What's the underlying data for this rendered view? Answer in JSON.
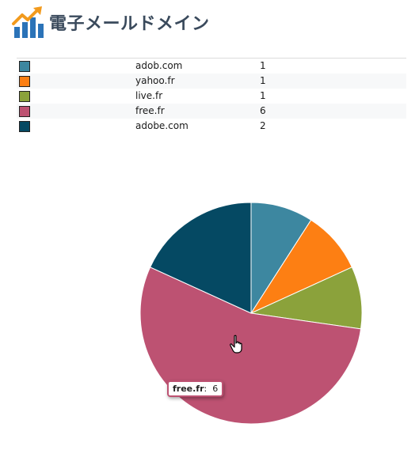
{
  "header": {
    "title": "電子メールドメイン",
    "logo_icon": "bar-chart-trend-icon"
  },
  "legend": [
    {
      "label": "adob.com",
      "count": "1",
      "color": "#3d87a0"
    },
    {
      "label": "yahoo.fr",
      "count": "1",
      "color": "#fd7f13"
    },
    {
      "label": "live.fr",
      "count": "1",
      "color": "#8ba23b"
    },
    {
      "label": "free.fr",
      "count": "6",
      "color": "#bd5272"
    },
    {
      "label": "adobe.com",
      "count": "2",
      "color": "#054963"
    }
  ],
  "chart_data": {
    "type": "pie",
    "categories": [
      "adob.com",
      "yahoo.fr",
      "live.fr",
      "free.fr",
      "adobe.com"
    ],
    "values": [
      1,
      1,
      1,
      6,
      2
    ],
    "colors": [
      "#3d87a0",
      "#fd7f13",
      "#8ba23b",
      "#bd5272",
      "#054963"
    ],
    "start": "12 o'clock, clockwise"
  },
  "tooltip": {
    "label": "free.fr",
    "value": "6"
  },
  "cursor_icon": "hand-pointer-icon"
}
